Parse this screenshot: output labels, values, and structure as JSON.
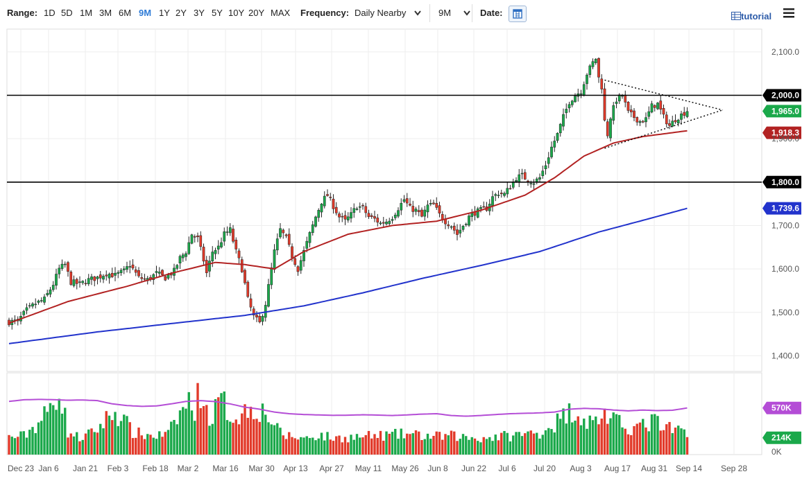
{
  "toolbar": {
    "range_label": "Range:",
    "ranges": [
      "1D",
      "5D",
      "1M",
      "3M",
      "6M",
      "9M",
      "1Y",
      "2Y",
      "3Y",
      "5Y",
      "10Y",
      "20Y",
      "MAX"
    ],
    "active_range": "9M",
    "frequency_label": "Frequency:",
    "frequency_value": "Daily Nearby",
    "period_value": "9M",
    "date_label": "Date:",
    "tutorial_label": "tutorial"
  },
  "colors": {
    "up": "#1aa84a",
    "down": "#e23a2a",
    "sma_short": "#b22222",
    "sma_long": "#2233cc",
    "volume_avg": "#b44dd6",
    "accent": "#2e7bd6"
  },
  "chart_data": [
    {
      "type": "candlestick",
      "x_tick_labels": [
        "Dec 23",
        "Jan 6",
        "Jan 21",
        "Feb 3",
        "Feb 18",
        "Mar 2",
        "Mar 16",
        "Mar 30",
        "Apr 13",
        "Apr 27",
        "May 11",
        "May 26",
        "Jun 8",
        "Jun 22",
        "Jul 6",
        "Jul 20",
        "Aug 3",
        "Aug 17",
        "Aug 31",
        "Sep 14",
        "Sep 28"
      ],
      "y_tick_labels": [
        "2,100.0",
        "1,900.0",
        "1,700.0",
        "1,600.0",
        "1,500.0",
        "1,400.0"
      ],
      "ylim": [
        1350,
        2140
      ],
      "horizontal_lines": [
        2000.0,
        1800.0
      ],
      "price_tags": [
        {
          "label": "2,000.0",
          "value": 2000.0,
          "style": "black"
        },
        {
          "label": "1,965.0",
          "value": 1965.0,
          "style": "up"
        },
        {
          "label": "1,918.3",
          "value": 1918.3,
          "style": "sma_short"
        },
        {
          "label": "1,800.0",
          "value": 1800.0,
          "style": "black"
        },
        {
          "label": "1,739.6",
          "value": 1739.6,
          "style": "sma_long"
        }
      ],
      "price_keypoints": [
        [
          0,
          1478
        ],
        [
          3,
          1480
        ],
        [
          6,
          1505
        ],
        [
          9,
          1520
        ],
        [
          12,
          1530
        ],
        [
          15,
          1565
        ],
        [
          17,
          1600
        ],
        [
          19,
          1610
        ],
        [
          21,
          1570
        ],
        [
          24,
          1565
        ],
        [
          27,
          1575
        ],
        [
          30,
          1580
        ],
        [
          33,
          1590
        ],
        [
          36,
          1585
        ],
        [
          39,
          1595
        ],
        [
          41,
          1610
        ],
        [
          44,
          1580
        ],
        [
          47,
          1575
        ],
        [
          50,
          1590
        ],
        [
          53,
          1580
        ],
        [
          56,
          1595
        ],
        [
          58,
          1625
        ],
        [
          60,
          1640
        ],
        [
          62,
          1680
        ],
        [
          64,
          1670
        ],
        [
          66,
          1620
        ],
        [
          67,
          1590
        ],
        [
          69,
          1640
        ],
        [
          71,
          1650
        ],
        [
          73,
          1680
        ],
        [
          75,
          1690
        ],
        [
          77,
          1640
        ],
        [
          79,
          1600
        ],
        [
          81,
          1530
        ],
        [
          83,
          1490
        ],
        [
          85,
          1475
        ],
        [
          87,
          1520
        ],
        [
          88,
          1560
        ],
        [
          90,
          1640
        ],
        [
          92,
          1690
        ],
        [
          94,
          1670
        ],
        [
          96,
          1630
        ],
        [
          98,
          1600
        ],
        [
          100,
          1640
        ],
        [
          102,
          1680
        ],
        [
          104,
          1720
        ],
        [
          106,
          1755
        ],
        [
          108,
          1770
        ],
        [
          110,
          1745
        ],
        [
          112,
          1720
        ],
        [
          114,
          1710
        ],
        [
          116,
          1725
        ],
        [
          118,
          1745
        ],
        [
          120,
          1740
        ],
        [
          122,
          1720
        ],
        [
          124,
          1715
        ],
        [
          126,
          1705
        ],
        [
          128,
          1710
        ],
        [
          130,
          1720
        ],
        [
          132,
          1740
        ],
        [
          134,
          1760
        ],
        [
          136,
          1740
        ],
        [
          138,
          1735
        ],
        [
          140,
          1720
        ],
        [
          142,
          1745
        ],
        [
          144,
          1748
        ],
        [
          146,
          1725
        ],
        [
          148,
          1710
        ],
        [
          150,
          1700
        ],
        [
          152,
          1680
        ],
        [
          154,
          1700
        ],
        [
          156,
          1720
        ],
        [
          158,
          1730
        ],
        [
          160,
          1735
        ],
        [
          162,
          1740
        ],
        [
          164,
          1765
        ],
        [
          166,
          1775
        ],
        [
          168,
          1772
        ],
        [
          170,
          1790
        ],
        [
          172,
          1810
        ],
        [
          174,
          1815
        ],
        [
          176,
          1805
        ],
        [
          178,
          1800
        ],
        [
          180,
          1810
        ],
        [
          182,
          1840
        ],
        [
          184,
          1880
        ],
        [
          186,
          1910
        ],
        [
          188,
          1950
        ],
        [
          190,
          1985
        ],
        [
          192,
          2000
        ],
        [
          194,
          2010
        ],
        [
          196,
          2050
        ],
        [
          198,
          2075
        ],
        [
          199,
          2085
        ],
        [
          200,
          2040
        ],
        [
          201,
          2020
        ],
        [
          202,
          1940
        ],
        [
          203,
          1910
        ],
        [
          204,
          1950
        ],
        [
          206,
          1990
        ],
        [
          208,
          2000
        ],
        [
          210,
          1960
        ],
        [
          212,
          1950
        ],
        [
          214,
          1940
        ],
        [
          216,
          1945
        ],
        [
          218,
          1975
        ],
        [
          220,
          1980
        ],
        [
          222,
          1950
        ],
        [
          224,
          1930
        ],
        [
          226,
          1945
        ],
        [
          228,
          1955
        ],
        [
          230,
          1965
        ]
      ],
      "series": [
        {
          "name": "",
          "type": "sma",
          "keypoints": [
            [
              0,
              1475
            ],
            [
              20,
              1525
            ],
            [
              40,
              1560
            ],
            [
              55,
              1590
            ],
            [
              70,
              1615
            ],
            [
              80,
              1610
            ],
            [
              90,
              1600
            ],
            [
              100,
              1640
            ],
            [
              115,
              1680
            ],
            [
              130,
              1700
            ],
            [
              145,
              1710
            ],
            [
              160,
              1735
            ],
            [
              175,
              1770
            ],
            [
              185,
              1810
            ],
            [
              195,
              1860
            ],
            [
              205,
              1890
            ],
            [
              215,
              1905
            ],
            [
              230,
              1918.3
            ]
          ]
        },
        {
          "name": "",
          "type": "sma",
          "keypoints": [
            [
              0,
              1428
            ],
            [
              30,
              1455
            ],
            [
              60,
              1478
            ],
            [
              80,
              1493
            ],
            [
              100,
              1515
            ],
            [
              120,
              1545
            ],
            [
              140,
              1578
            ],
            [
              160,
              1608
            ],
            [
              180,
              1640
            ],
            [
              200,
              1685
            ],
            [
              215,
              1712
            ],
            [
              230,
              1739.6
            ]
          ]
        }
      ],
      "trendlines": [
        {
          "from": [
            202,
            2035
          ],
          "to": [
            242,
            1966
          ]
        },
        {
          "from": [
            202,
            1878
          ],
          "to": [
            242,
            1966
          ]
        }
      ]
    },
    {
      "type": "bar",
      "name": "volume",
      "y_tick_labels": [
        "0K"
      ],
      "value_tags": [
        {
          "label": "570K",
          "value": 570,
          "style": "volume_avg"
        },
        {
          "label": "214K",
          "value": 214,
          "style": "up"
        }
      ],
      "ylim": [
        0,
        1000
      ],
      "volume_keypoints": [
        [
          0,
          210
        ],
        [
          5,
          230
        ],
        [
          10,
          390
        ],
        [
          14,
          560
        ],
        [
          17,
          820
        ],
        [
          20,
          280
        ],
        [
          24,
          200
        ],
        [
          28,
          260
        ],
        [
          31,
          350
        ],
        [
          35,
          520
        ],
        [
          38,
          470
        ],
        [
          42,
          270
        ],
        [
          46,
          240
        ],
        [
          50,
          230
        ],
        [
          54,
          250
        ],
        [
          57,
          440
        ],
        [
          59,
          560
        ],
        [
          61,
          640
        ],
        [
          63,
          580
        ],
        [
          65,
          800
        ],
        [
          67,
          520
        ],
        [
          69,
          450
        ],
        [
          71,
          640
        ],
        [
          73,
          620
        ],
        [
          75,
          470
        ],
        [
          77,
          480
        ],
        [
          79,
          500
        ],
        [
          81,
          560
        ],
        [
          83,
          580
        ],
        [
          85,
          550
        ],
        [
          87,
          510
        ],
        [
          89,
          420
        ],
        [
          91,
          300
        ],
        [
          93,
          240
        ],
        [
          96,
          220
        ],
        [
          100,
          200
        ],
        [
          105,
          240
        ],
        [
          110,
          200
        ],
        [
          115,
          210
        ],
        [
          120,
          220
        ],
        [
          125,
          230
        ],
        [
          130,
          240
        ],
        [
          135,
          250
        ],
        [
          140,
          230
        ],
        [
          145,
          220
        ],
        [
          150,
          230
        ],
        [
          155,
          210
        ],
        [
          160,
          200
        ],
        [
          165,
          220
        ],
        [
          170,
          230
        ],
        [
          175,
          250
        ],
        [
          180,
          270
        ],
        [
          185,
          380
        ],
        [
          188,
          460
        ],
        [
          190,
          520
        ],
        [
          192,
          560
        ],
        [
          194,
          460
        ],
        [
          196,
          420
        ],
        [
          198,
          380
        ],
        [
          200,
          450
        ],
        [
          202,
          510
        ],
        [
          204,
          420
        ],
        [
          206,
          390
        ],
        [
          208,
          360
        ],
        [
          210,
          340
        ],
        [
          212,
          330
        ],
        [
          214,
          350
        ],
        [
          216,
          340
        ],
        [
          218,
          410
        ],
        [
          220,
          390
        ],
        [
          222,
          300
        ],
        [
          224,
          310
        ],
        [
          226,
          280
        ],
        [
          228,
          320
        ],
        [
          230,
          214
        ]
      ],
      "volume_avg_keypoints": [
        [
          0,
          650
        ],
        [
          5,
          670
        ],
        [
          10,
          675
        ],
        [
          15,
          672
        ],
        [
          20,
          665
        ],
        [
          25,
          668
        ],
        [
          30,
          660
        ],
        [
          35,
          620
        ],
        [
          40,
          600
        ],
        [
          45,
          590
        ],
        [
          50,
          595
        ],
        [
          55,
          620
        ],
        [
          60,
          650
        ],
        [
          65,
          660
        ],
        [
          70,
          648
        ],
        [
          75,
          620
        ],
        [
          80,
          580
        ],
        [
          85,
          555
        ],
        [
          90,
          520
        ],
        [
          95,
          500
        ],
        [
          100,
          490
        ],
        [
          105,
          485
        ],
        [
          110,
          480
        ],
        [
          115,
          482
        ],
        [
          120,
          487
        ],
        [
          125,
          483
        ],
        [
          130,
          478
        ],
        [
          135,
          485
        ],
        [
          140,
          495
        ],
        [
          145,
          500
        ],
        [
          150,
          478
        ],
        [
          155,
          470
        ],
        [
          160,
          478
        ],
        [
          165,
          490
        ],
        [
          170,
          500
        ],
        [
          175,
          505
        ],
        [
          180,
          510
        ],
        [
          185,
          520
        ],
        [
          190,
          555
        ],
        [
          195,
          565
        ],
        [
          200,
          560
        ],
        [
          205,
          545
        ],
        [
          210,
          535
        ],
        [
          215,
          545
        ],
        [
          220,
          538
        ],
        [
          225,
          542
        ],
        [
          230,
          570
        ]
      ]
    }
  ]
}
